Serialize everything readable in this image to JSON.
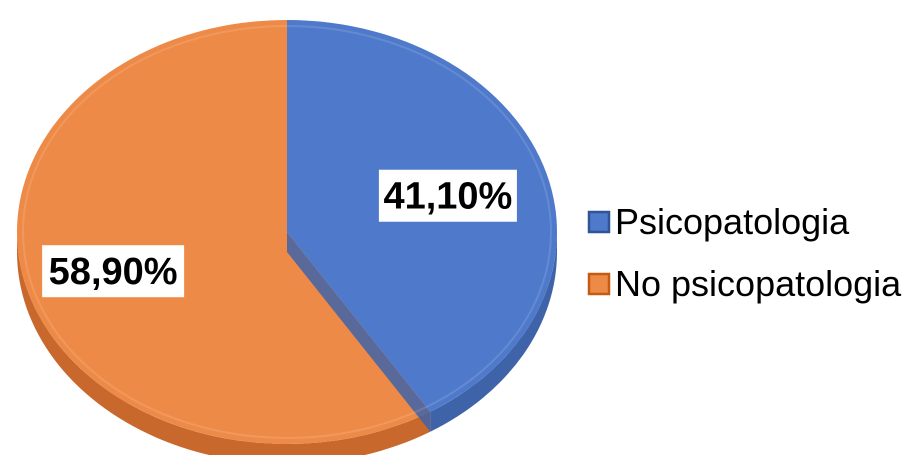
{
  "chart_data": {
    "type": "pie",
    "style": "3d",
    "categories": [
      "Psicopatologia",
      "No psicopatologia"
    ],
    "values": [
      41.1,
      58.9
    ],
    "data_labels": [
      "41,10%",
      "58,90%"
    ],
    "legend": {
      "placement": "right",
      "entries": [
        "Psicopatologia",
        "No psicopatologia"
      ]
    },
    "colors": {
      "Psicopatologia": "#4F7ACB",
      "No psicopatologia": "#EE8A47"
    },
    "side_colors": {
      "Psicopatologia": "#3E63A9",
      "No psicopatologia": "#C8682D"
    },
    "legend_border_colors": {
      "Psicopatologia": "#2F5597",
      "No psicopatologia": "#C55A11"
    },
    "title": "",
    "start_angle_deg": 0,
    "direction": "clockwise"
  }
}
